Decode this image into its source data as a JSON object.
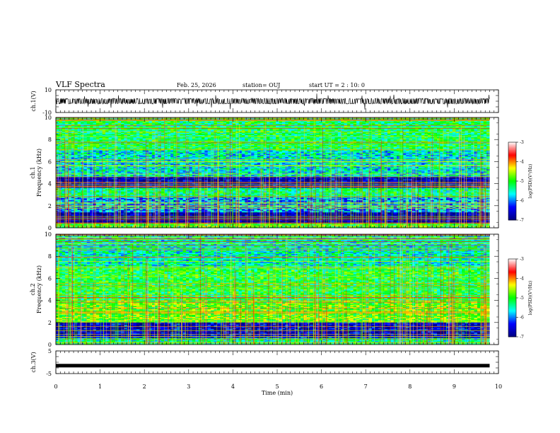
{
  "header": {
    "title": "VLF Spectra",
    "date": "Feb. 25, 2026",
    "station": "station= OUJ",
    "start": "start  UT =   2 : 10: 0"
  },
  "chart_data": [
    {
      "type": "line",
      "name": "ch1-waveform",
      "ylabel": "ch.1(V)",
      "ylim": [
        -10,
        10
      ],
      "ytick_labels": [
        "10",
        "-10"
      ],
      "baseline_value": 0,
      "xlim": [
        0,
        10
      ],
      "data_extent_min": 9.8
    },
    {
      "type": "heatmap",
      "name": "ch1-spectrogram",
      "ylabel": "ch.1\nFrequency (kHz)",
      "xlim": [
        0,
        10
      ],
      "ylim": [
        0,
        10
      ],
      "yticks": [
        0,
        2,
        4,
        6,
        8,
        10
      ],
      "colorbar": {
        "label": "log(PSD)(V²/Hz)",
        "range": [
          -7,
          -3
        ],
        "ticks": [
          "-3",
          "-4",
          "-5",
          "-6",
          "-7"
        ],
        "colors": [
          "#000080",
          "#0000ff",
          "#00ffff",
          "#00ff00",
          "#ffff00",
          "#ff0000",
          "#ffffff"
        ]
      },
      "bands": [
        {
          "from": 0,
          "to": 0.4,
          "level": -5
        },
        {
          "from": 0.4,
          "to": 1.4,
          "level": -6.8
        },
        {
          "from": 1.4,
          "to": 2.8,
          "level": -5.9
        },
        {
          "from": 2.8,
          "to": 3.6,
          "level": -5.3
        },
        {
          "from": 3.6,
          "to": 4.6,
          "level": -6.7
        },
        {
          "from": 4.6,
          "to": 7,
          "level": -5.6
        },
        {
          "from": 7,
          "to": 10,
          "level": -5.2
        }
      ]
    },
    {
      "type": "heatmap",
      "name": "ch2-spectrogram",
      "ylabel": "ch.2\nFrequency (kHz)",
      "xlim": [
        0,
        10
      ],
      "ylim": [
        0,
        10
      ],
      "yticks": [
        0,
        2,
        4,
        6,
        8,
        10
      ],
      "colorbar": {
        "label": "log(PSD)(V²/Hz)",
        "range": [
          -7,
          -3
        ],
        "ticks": [
          "-3",
          "-4",
          "-5",
          "-6",
          "-7"
        ],
        "colors": [
          "#000080",
          "#0000ff",
          "#00ffff",
          "#00ff00",
          "#ffff00",
          "#ff0000",
          "#ffffff"
        ]
      },
      "bands": [
        {
          "from": 0,
          "to": 0.6,
          "level": -5.4
        },
        {
          "from": 0.6,
          "to": 2,
          "level": -6.6
        },
        {
          "from": 2,
          "to": 4,
          "level": -4.8
        },
        {
          "from": 4,
          "to": 7,
          "level": -5.1
        },
        {
          "from": 7,
          "to": 10,
          "level": -5.5
        }
      ]
    },
    {
      "type": "line",
      "name": "ch3-waveform",
      "ylabel": "ch.3(V)",
      "ylim": [
        -5,
        5
      ],
      "ytick_labels": [
        "5",
        "-5"
      ],
      "baseline_value": -1.5,
      "xlim": [
        0,
        10
      ],
      "data_extent_min": 9.8
    }
  ],
  "xaxis": {
    "label": "Time (min)",
    "ticks": [
      "0",
      "1",
      "2",
      "3",
      "4",
      "5",
      "6",
      "7",
      "8",
      "9",
      "10"
    ]
  }
}
